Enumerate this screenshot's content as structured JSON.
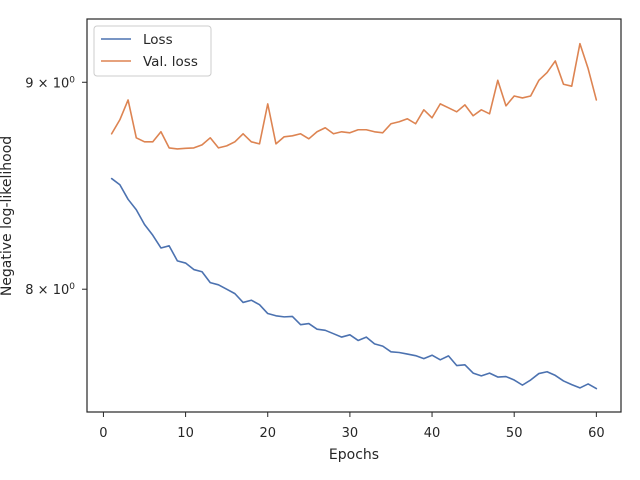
{
  "chart_data": {
    "type": "line",
    "xlabel": "Epochs",
    "ylabel": "Negative log-likelihood",
    "x_ticks": [
      0,
      10,
      20,
      30,
      40,
      50,
      60
    ],
    "y_ticks": [
      {
        "value": 8,
        "base": "8",
        "mult": "×",
        "pow": "10",
        "exp": "0"
      },
      {
        "value": 9,
        "base": "9",
        "mult": "×",
        "pow": "10",
        "exp": "0"
      }
    ],
    "y_scale": "log",
    "xlim": [
      -2,
      63
    ],
    "ylim": [
      7.46,
      9.33
    ],
    "legend_position": "top-left",
    "grid": false,
    "x": [
      1,
      2,
      3,
      4,
      5,
      6,
      7,
      8,
      9,
      10,
      11,
      12,
      13,
      14,
      15,
      16,
      17,
      18,
      19,
      20,
      21,
      22,
      23,
      24,
      25,
      26,
      27,
      28,
      29,
      30,
      31,
      32,
      33,
      34,
      35,
      36,
      37,
      38,
      39,
      40,
      41,
      42,
      43,
      44,
      45,
      46,
      47,
      48,
      49,
      50,
      51,
      52,
      53,
      54,
      55,
      56,
      57,
      58,
      59,
      60
    ],
    "series": [
      {
        "name": "Loss",
        "color": "#4c72b0",
        "values": [
          8.52,
          8.49,
          8.42,
          8.37,
          8.3,
          8.25,
          8.19,
          8.2,
          8.13,
          8.12,
          8.09,
          8.08,
          8.03,
          8.02,
          8.0,
          7.98,
          7.94,
          7.95,
          7.93,
          7.89,
          7.88,
          7.875,
          7.877,
          7.84,
          7.845,
          7.82,
          7.815,
          7.8,
          7.785,
          7.795,
          7.77,
          7.785,
          7.755,
          7.745,
          7.72,
          7.717,
          7.71,
          7.703,
          7.69,
          7.705,
          7.685,
          7.702,
          7.66,
          7.663,
          7.627,
          7.615,
          7.627,
          7.61,
          7.612,
          7.597,
          7.575,
          7.597,
          7.625,
          7.633,
          7.617,
          7.593,
          7.577,
          7.563,
          7.58,
          7.56
        ]
      },
      {
        "name": "Val. loss",
        "color": "#dd8452",
        "values": [
          8.74,
          8.81,
          8.91,
          8.72,
          8.7,
          8.7,
          8.75,
          8.67,
          8.665,
          8.668,
          8.67,
          8.685,
          8.72,
          8.67,
          8.68,
          8.7,
          8.74,
          8.7,
          8.69,
          8.89,
          8.69,
          8.725,
          8.73,
          8.74,
          8.715,
          8.75,
          8.77,
          8.74,
          8.75,
          8.745,
          8.76,
          8.76,
          8.75,
          8.745,
          8.79,
          8.8,
          8.815,
          8.79,
          8.86,
          8.82,
          8.89,
          8.87,
          8.85,
          8.885,
          8.83,
          8.86,
          8.84,
          9.01,
          8.88,
          8.93,
          8.92,
          8.93,
          9.01,
          9.05,
          9.11,
          8.99,
          8.98,
          9.2,
          9.07,
          8.91
        ]
      }
    ]
  }
}
